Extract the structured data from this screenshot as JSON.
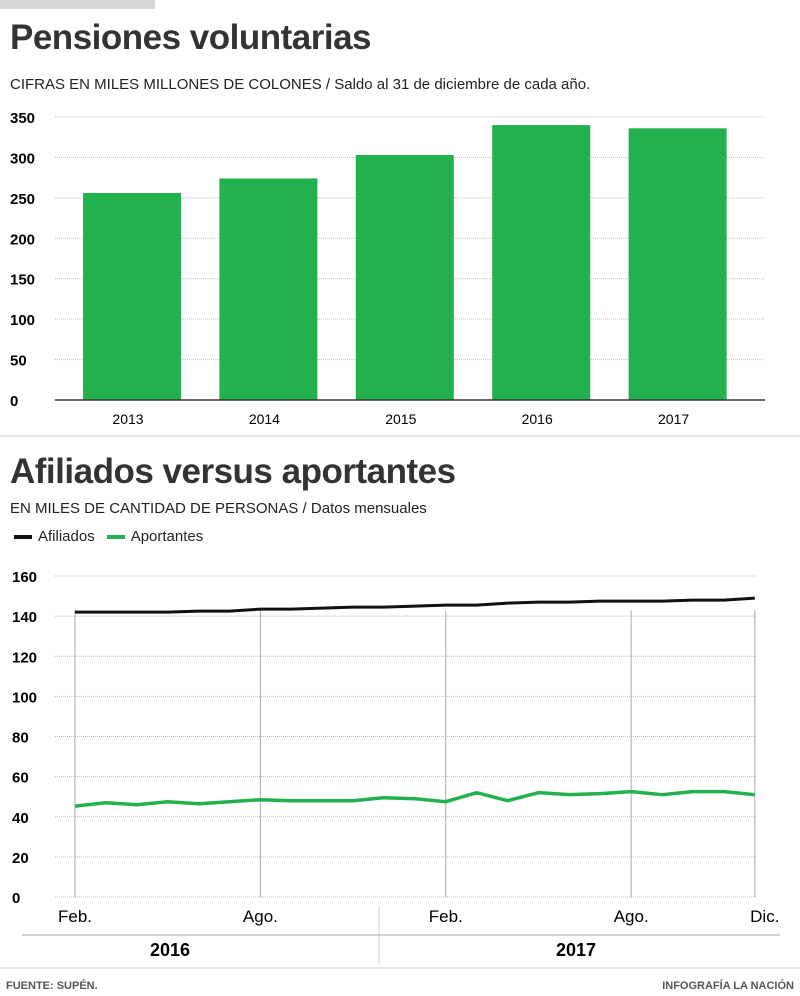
{
  "colors": {
    "green": "#22b14c",
    "black": "#111111"
  },
  "footer": {
    "source": "FUENTE: SUPÉN.",
    "credit": "INFOGRAFÍA LA NACIÓN"
  },
  "chart_data": [
    {
      "type": "bar",
      "title": "Pensiones voluntarias",
      "subtitle": "CIFRAS EN MILES MILLONES DE COLONES  /  Saldo al 31 de diciembre de cada año.",
      "categories": [
        "2013",
        "2014",
        "2015",
        "2016",
        "2017"
      ],
      "values": [
        256,
        274,
        303,
        340,
        336
      ],
      "yticks": [
        "0",
        "50",
        "100",
        "150",
        "200",
        "250",
        "300",
        "350"
      ],
      "ylim": [
        0,
        350
      ],
      "grid": true
    },
    {
      "type": "line",
      "title": "Afiliados versus aportantes",
      "subtitle": "EN MILES DE CANTIDAD DE PERSONAS / Datos mensuales",
      "legend": [
        "Afiliados",
        "Aportantes"
      ],
      "xticks": [
        "Feb.",
        "Ago.",
        "Feb.",
        "Ago.",
        "Dic."
      ],
      "years": [
        "2016",
        "2017"
      ],
      "yticks": [
        "0",
        "20",
        "40",
        "60",
        "80",
        "100",
        "120",
        "140",
        "160"
      ],
      "ylim": [
        0,
        160
      ],
      "grid": true,
      "series": [
        {
          "name": "Afiliados",
          "values": [
            142,
            142,
            142,
            142,
            142.5,
            142.5,
            143.5,
            143.5,
            144,
            144.5,
            144.5,
            145,
            145.5,
            145.5,
            146.5,
            147,
            147,
            147.5,
            147.5,
            147.5,
            148,
            148,
            149
          ]
        },
        {
          "name": "Aportantes",
          "values": [
            45.3,
            47,
            46,
            47.5,
            46.5,
            47.5,
            48.5,
            48,
            48,
            48,
            49.5,
            49,
            47.5,
            52,
            48,
            52,
            51,
            51.5,
            52.5,
            51,
            52.5,
            52.5,
            51
          ]
        }
      ]
    }
  ]
}
